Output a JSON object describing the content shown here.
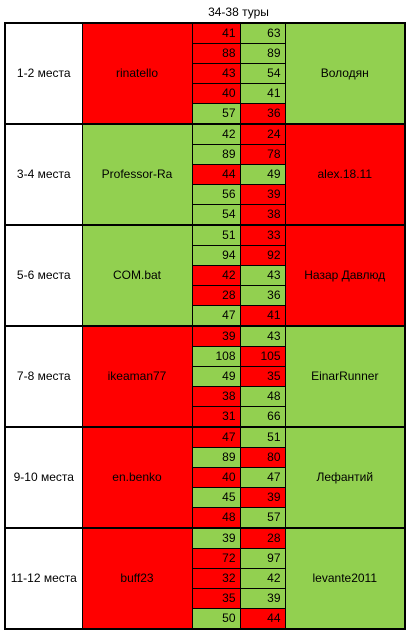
{
  "title": "34-38 туры",
  "colors": {
    "win": "#92d050",
    "loss": "#ff0000"
  },
  "groups": [
    {
      "place": "1-2 места",
      "left": {
        "name": "rinatello",
        "color": "loss"
      },
      "right": {
        "name": "Володян",
        "color": "win"
      },
      "rounds": [
        {
          "a": "41",
          "b": "63",
          "w": "b"
        },
        {
          "a": "88",
          "b": "89",
          "w": "b"
        },
        {
          "a": "43",
          "b": "54",
          "w": "b"
        },
        {
          "a": "40",
          "b": "41",
          "w": "b"
        },
        {
          "a": "57",
          "b": "36",
          "w": "a"
        }
      ]
    },
    {
      "place": "3-4 места",
      "left": {
        "name": "Professor-Ra",
        "color": "win"
      },
      "right": {
        "name": "alex.18.11",
        "color": "loss"
      },
      "rounds": [
        {
          "a": "42",
          "b": "24",
          "w": "a"
        },
        {
          "a": "89",
          "b": "78",
          "w": "a"
        },
        {
          "a": "44",
          "b": "49",
          "w": "b"
        },
        {
          "a": "56",
          "b": "39",
          "w": "a"
        },
        {
          "a": "54",
          "b": "38",
          "w": "a"
        }
      ]
    },
    {
      "place": "5-6 места",
      "left": {
        "name": "COM.bat",
        "color": "win"
      },
      "right": {
        "name": "Назар Давлюд",
        "color": "loss"
      },
      "rounds": [
        {
          "a": "51",
          "b": "33",
          "w": "a"
        },
        {
          "a": "94",
          "b": "92",
          "w": "a"
        },
        {
          "a": "42",
          "b": "43",
          "w": "b"
        },
        {
          "a": "28",
          "b": "36",
          "w": "b"
        },
        {
          "a": "47",
          "b": "41",
          "w": "a"
        }
      ]
    },
    {
      "place": "7-8 места",
      "left": {
        "name": "ikeaman77",
        "color": "loss"
      },
      "right": {
        "name": "EinarRunner",
        "color": "win"
      },
      "rounds": [
        {
          "a": "39",
          "b": "43",
          "w": "b"
        },
        {
          "a": "108",
          "b": "105",
          "w": "a"
        },
        {
          "a": "49",
          "b": "35",
          "w": "a"
        },
        {
          "a": "38",
          "b": "48",
          "w": "b"
        },
        {
          "a": "31",
          "b": "66",
          "w": "b"
        }
      ]
    },
    {
      "place": "9-10 места",
      "left": {
        "name": "en.benko",
        "color": "loss"
      },
      "right": {
        "name": "Лефантий",
        "color": "win"
      },
      "rounds": [
        {
          "a": "47",
          "b": "51",
          "w": "b"
        },
        {
          "a": "89",
          "b": "80",
          "w": "a"
        },
        {
          "a": "40",
          "b": "47",
          "w": "b"
        },
        {
          "a": "45",
          "b": "39",
          "w": "a"
        },
        {
          "a": "48",
          "b": "57",
          "w": "b"
        }
      ]
    },
    {
      "place": "11-12 места",
      "left": {
        "name": "buff23",
        "color": "loss"
      },
      "right": {
        "name": "levante2011",
        "color": "win"
      },
      "rounds": [
        {
          "a": "39",
          "b": "28",
          "w": "a"
        },
        {
          "a": "72",
          "b": "97",
          "w": "b"
        },
        {
          "a": "32",
          "b": "42",
          "w": "b"
        },
        {
          "a": "35",
          "b": "39",
          "w": "b"
        },
        {
          "a": "50",
          "b": "44",
          "w": "a"
        }
      ]
    }
  ]
}
